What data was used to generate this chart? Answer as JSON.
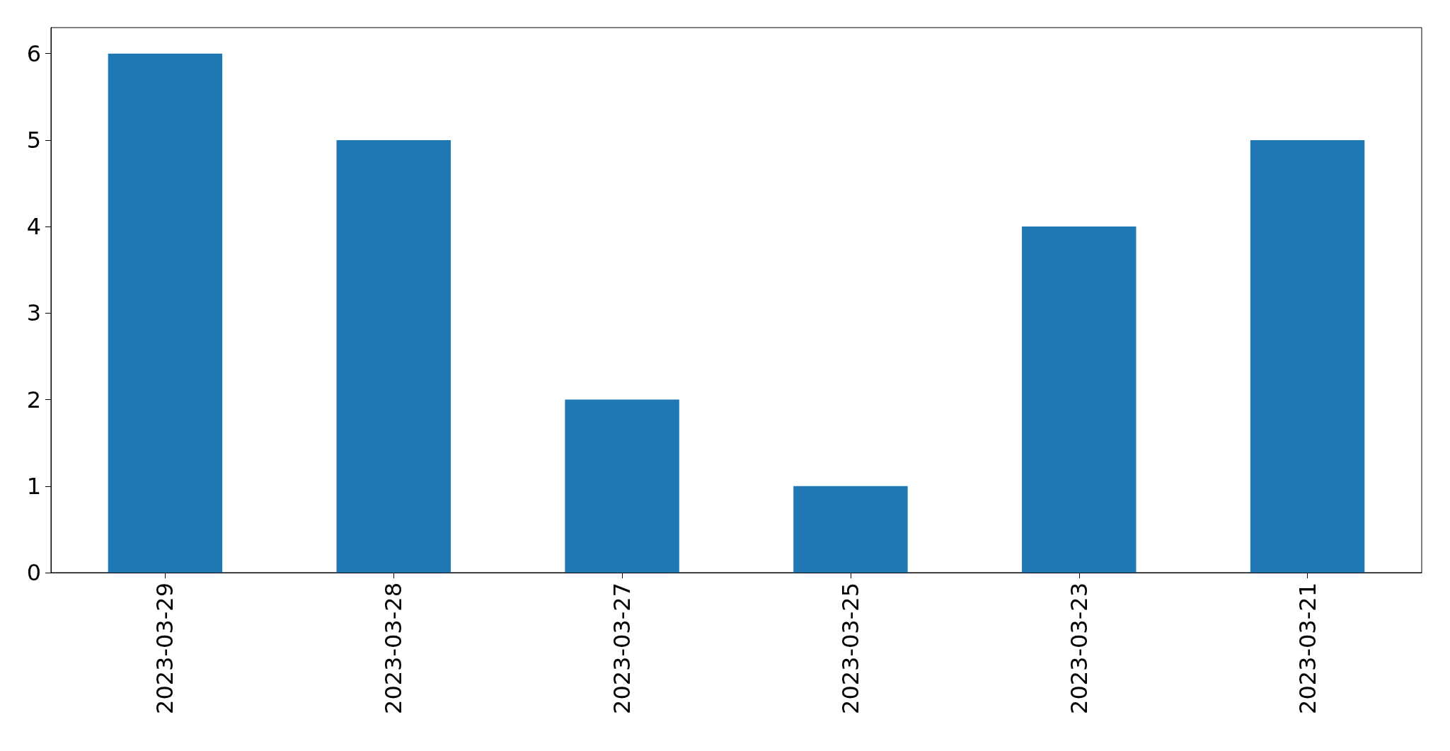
{
  "chart_data": {
    "type": "bar",
    "categories": [
      "2023-03-29",
      "2023-03-28",
      "2023-03-27",
      "2023-03-25",
      "2023-03-23",
      "2023-03-21"
    ],
    "values": [
      6,
      5,
      2,
      1,
      4,
      5
    ],
    "color": "#1f77b4",
    "ylim": [
      0,
      6.3
    ],
    "yticks": [
      0,
      1,
      2,
      3,
      4,
      5,
      6
    ]
  }
}
